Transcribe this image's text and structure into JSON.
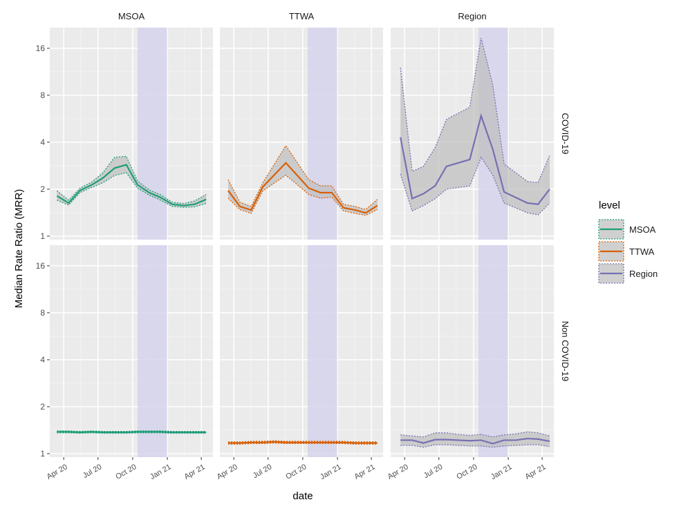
{
  "chart_data": {
    "type": "line",
    "ylabel": "Median Rate Ratio (MRR)",
    "xlabel": "date",
    "y_scale": "log2",
    "ylim": [
      0.95,
      21.7
    ],
    "yticks": [
      1,
      2,
      4,
      8,
      16
    ],
    "xlim": [
      "2020-02-24",
      "2021-05-02"
    ],
    "xticks": [
      {
        "date": "2020-04-01",
        "label": "Apr 20"
      },
      {
        "date": "2020-07-01",
        "label": "Jul 20"
      },
      {
        "date": "2020-10-01",
        "label": "Oct 20"
      },
      {
        "date": "2021-01-01",
        "label": "Jan 21"
      },
      {
        "date": "2021-04-01",
        "label": "Apr 21"
      }
    ],
    "shaded_period": [
      "2020-10-14",
      "2020-12-31"
    ],
    "shade_color": "#d6d4ec",
    "grid": true,
    "columns": [
      "MSOA",
      "TTWA",
      "Region"
    ],
    "rows": [
      "COVID-19",
      "Non COVID-19"
    ],
    "legend": {
      "title": "level",
      "placement": "right",
      "entries": [
        {
          "name": "MSOA",
          "color": "#1b9e77"
        },
        {
          "name": "TTWA",
          "color": "#d95f02"
        },
        {
          "name": "Region",
          "color": "#7570b3"
        }
      ]
    },
    "panels": [
      {
        "row": "COVID-19",
        "col": "MSOA",
        "dates": [
          "2020-03-14",
          "2020-04-14",
          "2020-05-14",
          "2020-06-14",
          "2020-07-14",
          "2020-08-14",
          "2020-09-14",
          "2020-10-14",
          "2020-11-14",
          "2020-12-14",
          "2021-01-14",
          "2021-02-14",
          "2021-03-14",
          "2021-04-14"
        ],
        "median": [
          1.81,
          1.63,
          1.96,
          2.13,
          2.36,
          2.73,
          2.87,
          2.13,
          1.9,
          1.77,
          1.6,
          1.57,
          1.6,
          1.72
        ],
        "lower": [
          1.7,
          1.58,
          1.9,
          2.05,
          2.2,
          2.45,
          2.55,
          2.03,
          1.83,
          1.7,
          1.55,
          1.53,
          1.54,
          1.62
        ],
        "upper": [
          1.95,
          1.7,
          2.03,
          2.22,
          2.55,
          3.2,
          3.25,
          2.25,
          1.98,
          1.84,
          1.65,
          1.62,
          1.68,
          1.85
        ]
      },
      {
        "row": "COVID-19",
        "col": "TTWA",
        "dates": [
          "2020-03-17",
          "2020-04-17",
          "2020-05-17",
          "2020-06-17",
          "2020-08-17",
          "2020-10-17",
          "2020-11-17",
          "2020-12-17",
          "2021-01-17",
          "2021-02-17",
          "2021-03-17",
          "2021-04-17"
        ],
        "median": [
          1.96,
          1.55,
          1.47,
          2.07,
          2.95,
          2.03,
          1.9,
          1.9,
          1.52,
          1.47,
          1.41,
          1.57
        ],
        "lower": [
          1.75,
          1.48,
          1.4,
          1.95,
          2.46,
          1.85,
          1.75,
          1.78,
          1.45,
          1.4,
          1.36,
          1.48
        ],
        "upper": [
          2.3,
          1.65,
          1.55,
          2.2,
          3.8,
          2.3,
          2.1,
          2.1,
          1.6,
          1.55,
          1.48,
          1.72
        ]
      },
      {
        "row": "COVID-19",
        "col": "Region",
        "dates": [
          "2020-03-21",
          "2020-04-21",
          "2020-05-21",
          "2020-06-21",
          "2020-07-21",
          "2020-09-21",
          "2020-10-21",
          "2020-11-21",
          "2020-12-21",
          "2021-02-21",
          "2021-03-21",
          "2021-04-21"
        ],
        "median": [
          4.3,
          1.74,
          1.87,
          2.1,
          2.8,
          3.1,
          5.9,
          3.6,
          1.92,
          1.63,
          1.6,
          2.0
        ],
        "lower": [
          2.5,
          1.45,
          1.57,
          1.74,
          2.0,
          2.1,
          3.2,
          2.46,
          1.63,
          1.41,
          1.37,
          1.63
        ],
        "upper": [
          12.0,
          2.6,
          2.8,
          3.7,
          5.6,
          6.7,
          18.6,
          9.3,
          2.9,
          2.24,
          2.2,
          3.3
        ]
      },
      {
        "row": "Non COVID-19",
        "col": "MSOA",
        "dates": [
          "2020-03-14",
          "2020-04-14",
          "2020-05-14",
          "2020-06-14",
          "2020-07-14",
          "2020-08-14",
          "2020-09-14",
          "2020-10-14",
          "2020-11-14",
          "2020-12-14",
          "2021-01-14",
          "2021-02-14",
          "2021-03-14",
          "2021-04-14"
        ],
        "median": [
          1.38,
          1.38,
          1.37,
          1.38,
          1.37,
          1.37,
          1.37,
          1.38,
          1.38,
          1.38,
          1.37,
          1.37,
          1.37,
          1.37
        ],
        "lower": [
          1.36,
          1.36,
          1.35,
          1.36,
          1.35,
          1.35,
          1.35,
          1.36,
          1.36,
          1.36,
          1.35,
          1.35,
          1.35,
          1.35
        ],
        "upper": [
          1.4,
          1.4,
          1.39,
          1.4,
          1.39,
          1.39,
          1.39,
          1.4,
          1.4,
          1.4,
          1.39,
          1.39,
          1.39,
          1.39
        ]
      },
      {
        "row": "Non COVID-19",
        "col": "TTWA",
        "dates": [
          "2020-03-17",
          "2020-04-17",
          "2020-05-17",
          "2020-06-17",
          "2020-07-17",
          "2020-08-17",
          "2020-09-17",
          "2020-10-17",
          "2020-11-17",
          "2020-12-17",
          "2021-01-17",
          "2021-02-17",
          "2021-03-17",
          "2021-04-17"
        ],
        "median": [
          1.17,
          1.17,
          1.18,
          1.18,
          1.19,
          1.18,
          1.18,
          1.18,
          1.18,
          1.18,
          1.18,
          1.17,
          1.17,
          1.17
        ],
        "lower": [
          1.15,
          1.15,
          1.16,
          1.16,
          1.17,
          1.16,
          1.16,
          1.16,
          1.16,
          1.16,
          1.16,
          1.15,
          1.15,
          1.15
        ],
        "upper": [
          1.19,
          1.19,
          1.2,
          1.2,
          1.21,
          1.2,
          1.2,
          1.2,
          1.2,
          1.2,
          1.2,
          1.19,
          1.19,
          1.19
        ]
      },
      {
        "row": "Non COVID-19",
        "col": "Region",
        "dates": [
          "2020-03-21",
          "2020-04-21",
          "2020-05-21",
          "2020-06-21",
          "2020-07-21",
          "2020-08-21",
          "2020-09-21",
          "2020-10-21",
          "2020-11-21",
          "2020-12-21",
          "2021-01-21",
          "2021-02-21",
          "2021-03-21",
          "2021-04-21"
        ],
        "median": [
          1.22,
          1.22,
          1.17,
          1.23,
          1.23,
          1.22,
          1.21,
          1.22,
          1.16,
          1.22,
          1.22,
          1.25,
          1.24,
          1.2
        ],
        "lower": [
          1.13,
          1.13,
          1.1,
          1.14,
          1.14,
          1.13,
          1.12,
          1.12,
          1.1,
          1.12,
          1.13,
          1.14,
          1.14,
          1.11
        ],
        "upper": [
          1.32,
          1.3,
          1.28,
          1.36,
          1.36,
          1.33,
          1.31,
          1.33,
          1.28,
          1.32,
          1.34,
          1.38,
          1.36,
          1.3
        ]
      }
    ]
  }
}
